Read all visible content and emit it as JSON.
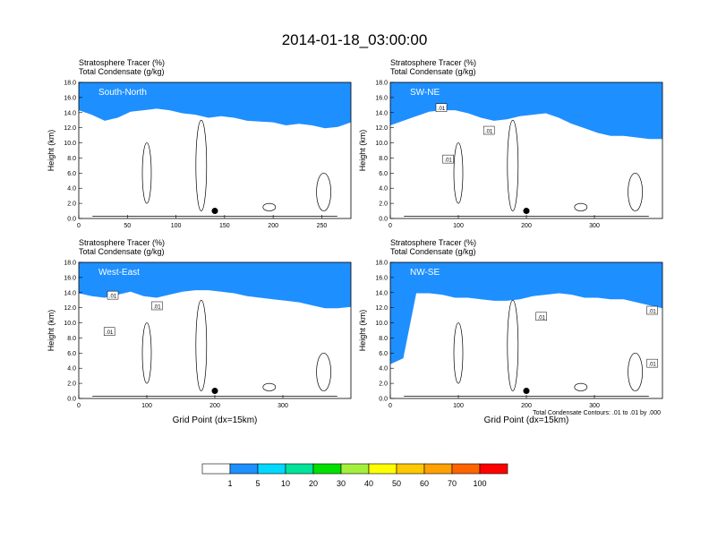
{
  "title": "2014-01-18_03:00:00",
  "footnote": "Total Condensate Contours: .01 to .01 by .000",
  "colorbar": {
    "colors": [
      "#ffffff",
      "#1e8fff",
      "#00d8ff",
      "#00e39a",
      "#00e000",
      "#a4ef3c",
      "#ffff00",
      "#ffc800",
      "#ffa100",
      "#ff6400",
      "#ff0000"
    ],
    "labels": [
      "1",
      "5",
      "10",
      "20",
      "30",
      "40",
      "50",
      "60",
      "70",
      "100"
    ]
  },
  "chart_data": [
    {
      "type": "contour",
      "label_top": "Stratosphere Tracer   (%)",
      "label_bottom": "Total Condensate   (g/kg)",
      "panel_label": "South-North",
      "ylabel": "Height (km)",
      "xlabel": "",
      "xlim": [
        0,
        280
      ],
      "ylim": [
        0,
        18
      ],
      "xticks": [
        "0",
        "50",
        "100",
        "150",
        "200",
        "250"
      ],
      "xtick_values": [
        0,
        50,
        100,
        150,
        200,
        250
      ],
      "yticks": [
        "0.0",
        "2.0",
        "4.0",
        "6.0",
        "8.0",
        "10.0",
        "12.0",
        "14.0",
        "16.0",
        "18.0"
      ],
      "tracer_base_km": [
        15.0,
        14.4,
        13.6,
        14.0,
        14.8,
        15.0,
        15.2,
        15.0,
        14.6,
        14.4,
        14.0,
        14.2,
        14.0,
        13.6,
        13.5,
        13.4,
        13.0,
        13.2,
        13.0,
        12.6,
        12.8,
        13.4
      ],
      "contour_labels": [],
      "marker": {
        "x": 140,
        "y": 1.0
      }
    },
    {
      "type": "contour",
      "label_top": "Stratosphere Tracer   (%)",
      "label_bottom": "Total Condensate   (g/kg)",
      "panel_label": "SW-NE",
      "ylabel": "Height (km)",
      "xlabel": "",
      "xlim": [
        0,
        400
      ],
      "ylim": [
        0,
        18
      ],
      "xticks": [
        "0",
        "100",
        "200",
        "300"
      ],
      "xtick_values": [
        0,
        100,
        200,
        300
      ],
      "yticks": [
        "0.0",
        "2.0",
        "4.0",
        "6.0",
        "8.0",
        "10.0",
        "12.0",
        "14.0",
        "16.0",
        "18.0"
      ],
      "tracer_base_km": [
        13.0,
        13.6,
        14.2,
        14.8,
        15.0,
        15.0,
        14.6,
        14.0,
        13.6,
        13.8,
        14.2,
        14.4,
        14.6,
        14.0,
        13.2,
        12.6,
        12.0,
        11.6,
        11.6,
        11.4,
        11.2,
        11.2
      ],
      "contour_labels": [
        ".01",
        ".01",
        ".01"
      ],
      "contour_label_pos": [
        [
          75,
          14.6
        ],
        [
          145,
          11.6
        ],
        [
          85,
          7.8
        ]
      ],
      "marker": {
        "x": 200,
        "y": 1.0
      }
    },
    {
      "type": "contour",
      "label_top": "Stratosphere Tracer   (%)",
      "label_bottom": "Total Condensate   (g/kg)",
      "panel_label": "West-East",
      "ylabel": "Height (km)",
      "xlabel": "Grid Point (dx=15km)",
      "xlim": [
        0,
        400
      ],
      "ylim": [
        0,
        18
      ],
      "xticks": [
        "0",
        "100",
        "200",
        "300"
      ],
      "xtick_values": [
        0,
        100,
        200,
        300
      ],
      "yticks": [
        "0.0",
        "2.0",
        "4.0",
        "6.0",
        "8.0",
        "10.0",
        "12.0",
        "14.0",
        "16.0",
        "18.0"
      ],
      "tracer_base_km": [
        14.6,
        14.2,
        14.0,
        14.4,
        14.8,
        14.2,
        14.0,
        14.4,
        14.8,
        15.0,
        15.0,
        14.8,
        14.6,
        14.2,
        14.0,
        13.8,
        13.6,
        13.4,
        13.0,
        12.6,
        12.6,
        12.8
      ],
      "contour_labels": [
        ".01",
        ".01",
        ".01"
      ],
      "contour_label_pos": [
        [
          50,
          13.6
        ],
        [
          115,
          12.2
        ],
        [
          45,
          8.8
        ]
      ],
      "marker": {
        "x": 200,
        "y": 1.0
      }
    },
    {
      "type": "contour",
      "label_top": "Stratosphere Tracer   (%)",
      "label_bottom": "Total Condensate   (g/kg)",
      "panel_label": "NW-SE",
      "ylabel": "Height (km)",
      "xlabel": "Grid Point (dx=15km)",
      "xlim": [
        0,
        400
      ],
      "ylim": [
        0,
        18
      ],
      "xticks": [
        "0",
        "100",
        "200",
        "300"
      ],
      "xtick_values": [
        0,
        100,
        200,
        300
      ],
      "yticks": [
        "0.0",
        "2.0",
        "4.0",
        "6.0",
        "8.0",
        "10.0",
        "12.0",
        "14.0",
        "16.0",
        "18.0"
      ],
      "tracer_base_km": [
        5.2,
        6.0,
        14.6,
        14.6,
        14.4,
        14.0,
        14.0,
        13.8,
        13.6,
        13.6,
        13.8,
        14.2,
        14.4,
        14.6,
        14.4,
        14.0,
        14.0,
        13.8,
        13.8,
        13.4,
        13.0,
        12.6
      ],
      "contour_labels": [
        ".01",
        ".01",
        ".01"
      ],
      "contour_label_pos": [
        [
          222,
          10.8
        ],
        [
          385,
          11.6
        ],
        [
          385,
          4.6
        ]
      ],
      "marker": {
        "x": 200,
        "y": 1.0
      }
    }
  ]
}
